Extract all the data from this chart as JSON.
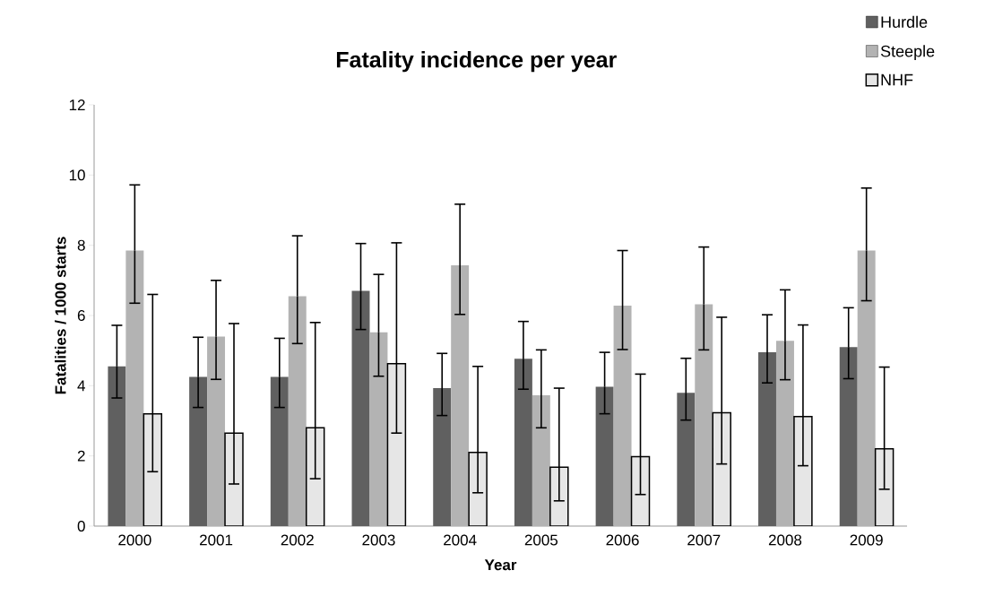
{
  "chart_data": {
    "type": "bar",
    "title": "Fatality incidence per year",
    "xlabel": "Year",
    "ylabel": "Fatalities / 1000 starts",
    "categories": [
      "2000",
      "2001",
      "2002",
      "2003",
      "2004",
      "2005",
      "2006",
      "2007",
      "2008",
      "2009"
    ],
    "series": [
      {
        "name": "Hurdle",
        "color": "#606060",
        "values": [
          4.55,
          4.25,
          4.25,
          6.7,
          3.93,
          4.77,
          3.97,
          3.8,
          4.95,
          5.1
        ],
        "errors": [
          [
            3.65,
            5.72
          ],
          [
            3.38,
            5.38
          ],
          [
            3.38,
            5.35
          ],
          [
            5.6,
            8.05
          ],
          [
            3.15,
            4.92
          ],
          [
            3.9,
            5.83
          ],
          [
            3.2,
            4.95
          ],
          [
            3.02,
            4.78
          ],
          [
            4.08,
            6.02
          ],
          [
            4.2,
            6.22
          ]
        ]
      },
      {
        "name": "Steeple",
        "color": "#b3b3b3",
        "values": [
          7.85,
          5.4,
          6.55,
          5.52,
          7.43,
          3.73,
          6.28,
          6.32,
          5.28,
          7.85
        ],
        "errors": [
          [
            6.35,
            9.72
          ],
          [
            4.18,
            7.0
          ],
          [
            5.2,
            8.27
          ],
          [
            4.27,
            7.17
          ],
          [
            6.03,
            9.17
          ],
          [
            2.8,
            5.02
          ],
          [
            5.03,
            7.85
          ],
          [
            5.02,
            7.95
          ],
          [
            4.17,
            6.73
          ],
          [
            6.42,
            9.63
          ]
        ]
      },
      {
        "name": "NHF",
        "color": "#e6e6e6",
        "values": [
          3.2,
          2.65,
          2.8,
          4.63,
          2.1,
          1.68,
          1.98,
          3.23,
          3.12,
          2.2
        ],
        "errors": [
          [
            1.55,
            6.6
          ],
          [
            1.2,
            5.77
          ],
          [
            1.35,
            5.8
          ],
          [
            2.65,
            8.07
          ],
          [
            0.95,
            4.55
          ],
          [
            0.72,
            3.93
          ],
          [
            0.9,
            4.33
          ],
          [
            1.77,
            5.95
          ],
          [
            1.72,
            5.73
          ],
          [
            1.05,
            4.53
          ]
        ]
      }
    ],
    "ylim": [
      0,
      12
    ],
    "yticks": [
      0,
      2,
      4,
      6,
      8,
      10,
      12
    ],
    "legend": "top right"
  }
}
